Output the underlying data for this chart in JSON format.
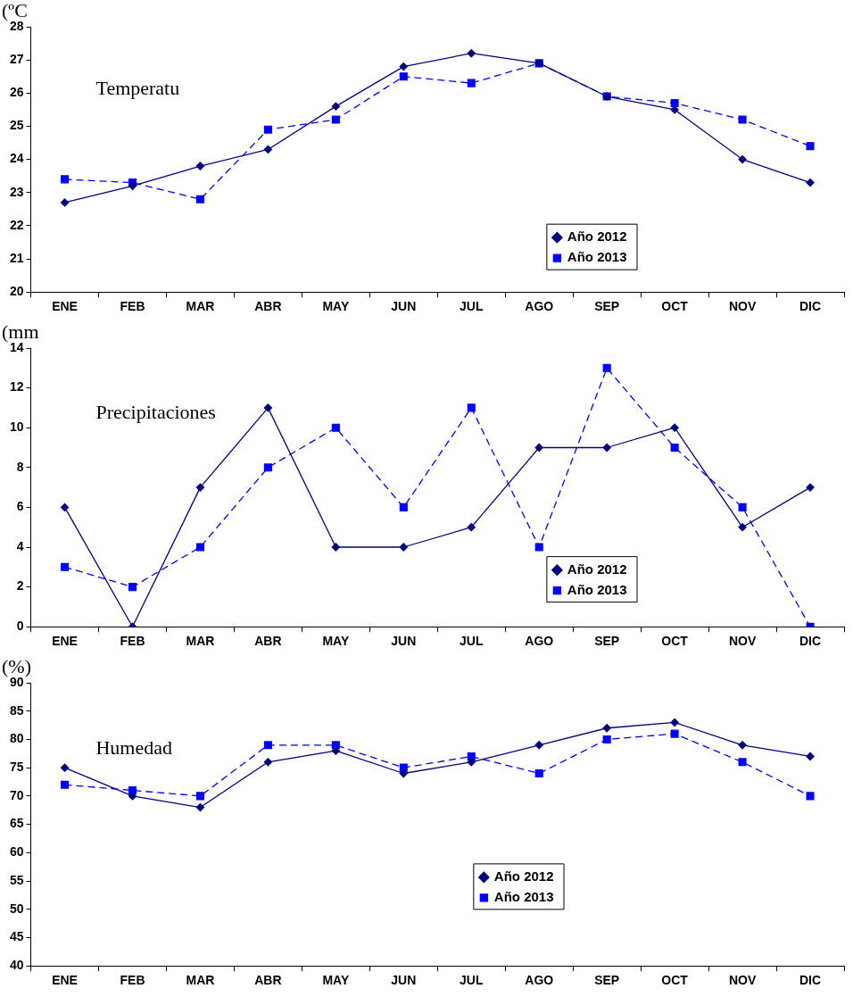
{
  "chart_data": [
    {
      "type": "line",
      "title": "Temperatu",
      "ylabel": "(ºC",
      "categories": [
        "ENE",
        "FEB",
        "MAR",
        "ABR",
        "MAY",
        "JUN",
        "JUL",
        "AGO",
        "SEP",
        "OCT",
        "NOV",
        "DIC"
      ],
      "ylim": [
        20,
        28
      ],
      "yticks": [
        20,
        21,
        22,
        23,
        24,
        25,
        26,
        27,
        28
      ],
      "grid": false,
      "legend": "bottom right",
      "series": [
        {
          "name": "Año 2012",
          "color": "#000080",
          "marker": "diamond",
          "line_style": "solid",
          "values": [
            22.7,
            23.2,
            23.8,
            24.3,
            25.6,
            26.8,
            27.2,
            26.9,
            25.9,
            25.5,
            24.0,
            23.3
          ]
        },
        {
          "name": "Año 2013",
          "color": "#0000ff",
          "marker": "square",
          "line_style": "dashed",
          "values": [
            23.4,
            23.3,
            22.8,
            24.9,
            25.2,
            26.5,
            26.3,
            26.9,
            25.9,
            25.7,
            25.2,
            24.4
          ]
        }
      ]
    },
    {
      "type": "line",
      "title": "Precipitaciones",
      "ylabel": "(mm",
      "categories": [
        "ENE",
        "FEB",
        "MAR",
        "ABR",
        "MAY",
        "JUN",
        "JUL",
        "AGO",
        "SEP",
        "OCT",
        "NOV",
        "DIC"
      ],
      "ylim": [
        0,
        14
      ],
      "yticks": [
        0,
        2,
        4,
        6,
        8,
        10,
        12,
        14
      ],
      "grid": false,
      "legend": "bottom right",
      "series": [
        {
          "name": "Año 2012",
          "color": "#000080",
          "marker": "diamond",
          "line_style": "solid",
          "values": [
            6,
            0,
            7,
            11,
            4,
            4,
            5,
            9,
            9,
            10,
            5,
            7
          ]
        },
        {
          "name": "Año 2013",
          "color": "#0000ff",
          "marker": "square",
          "line_style": "dashed",
          "values": [
            3,
            2,
            4,
            8,
            10,
            6,
            11,
            4,
            13,
            9,
            6,
            0
          ]
        }
      ]
    },
    {
      "type": "line",
      "title": "Humedad",
      "ylabel": "(%)",
      "categories": [
        "ENE",
        "FEB",
        "MAR",
        "ABR",
        "MAY",
        "JUN",
        "JUL",
        "AGO",
        "SEP",
        "OCT",
        "NOV",
        "DIC"
      ],
      "ylim": [
        40,
        90
      ],
      "yticks": [
        40,
        45,
        50,
        55,
        60,
        65,
        70,
        75,
        80,
        85,
        90
      ],
      "grid": false,
      "legend": "bottom",
      "series": [
        {
          "name": "Año 2012",
          "color": "#000080",
          "marker": "diamond",
          "line_style": "solid",
          "values": [
            75,
            70,
            68,
            76,
            78,
            74,
            76,
            79,
            82,
            83,
            79,
            77
          ]
        },
        {
          "name": "Año 2013",
          "color": "#0000ff",
          "marker": "square",
          "line_style": "dashed",
          "values": [
            72,
            71,
            70,
            79,
            79,
            75,
            77,
            74,
            80,
            81,
            76,
            70
          ]
        }
      ]
    }
  ]
}
